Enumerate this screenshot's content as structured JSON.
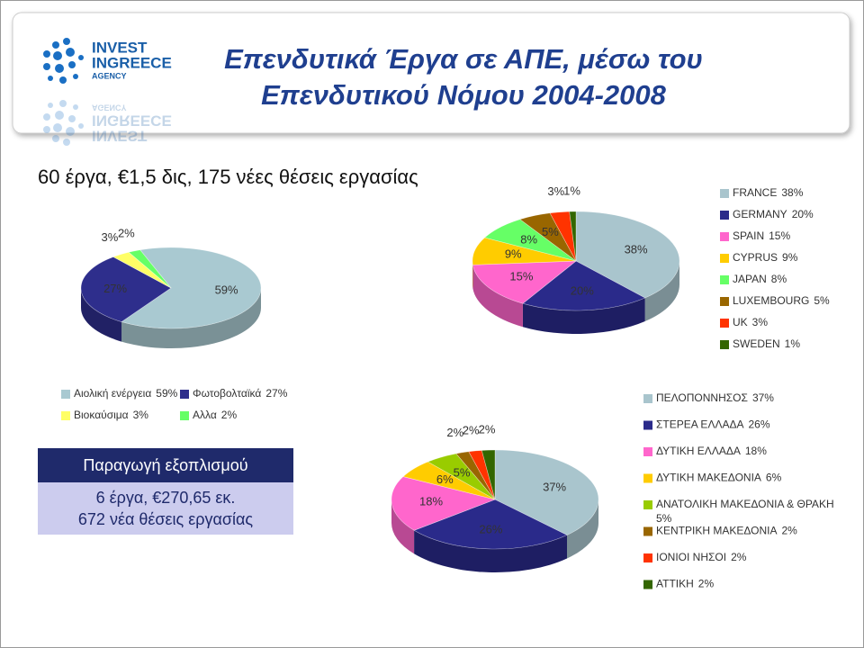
{
  "header": {
    "title_lines": [
      "Επενδυτικά Έργα σε ΑΠΕ, μέσω του",
      "Επενδυτικού Νόμου 2004-2008"
    ],
    "logo": [
      "INVEST",
      "INGREECE",
      "AGENCY"
    ]
  },
  "subtitle": "60 έργα, €1,5 δις, 175 νέες θέσεις εργασίας",
  "box": {
    "heading": "Παραγωγή εξοπλισμού",
    "lines": [
      "6 έργα, €270,65 εκ.",
      "672 νέα θέσεις εργασίας"
    ]
  },
  "chart_data": [
    {
      "type": "pie",
      "categories": [
        "Αιολική ενέργεια",
        "Φωτοβολταϊκά",
        "Βιοκαύσιμα",
        "Αλλα"
      ],
      "values": [
        59,
        27,
        3,
        2
      ],
      "value_labels": [
        "59%",
        "27%",
        "3%",
        "2%"
      ],
      "colors": [
        "#a9c9d1",
        "#2e2e8c",
        "#ffff66",
        "#66ff66"
      ]
    },
    {
      "type": "pie",
      "categories": [
        "FRANCE",
        "GERMANY",
        "SPAIN",
        "CYPRUS",
        "JAPAN",
        "LUXEMBOURG",
        "UK",
        "SWEDEN"
      ],
      "values": [
        38,
        20,
        15,
        9,
        8,
        5,
        3,
        1
      ],
      "value_labels": [
        "38%",
        "20%",
        "15%",
        "9%",
        "8%",
        "5%",
        "3%",
        "1%"
      ],
      "colors": [
        "#a9c5cd",
        "#2a2a8a",
        "#ff66cc",
        "#ffcc00",
        "#66ff66",
        "#996600",
        "#ff3300",
        "#336600"
      ]
    },
    {
      "type": "pie",
      "categories": [
        "ΠΕΛΟΠΟΝΝΗΣΟΣ",
        "ΣΤΕΡΕΑ ΕΛΛΑΔΑ",
        "ΔΥΤΙΚΗ ΕΛΛΑΔΑ",
        "ΔΥΤΙΚΗ ΜΑΚΕΔΟΝΙΑ",
        "ΑΝΑΤΟΛΙΚΗ ΜΑΚΕΔΟΝΙΑ & ΘΡΑΚΗ",
        "ΚΕΝΤΡΙΚΗ ΜΑΚΕΔΟΝΙΑ",
        "ΙΟΝΙΟΙ ΝΗΣΟΙ",
        "ΑΤΤΙΚΗ"
      ],
      "values": [
        37,
        26,
        18,
        6,
        5,
        2,
        2,
        2
      ],
      "value_labels": [
        "37%",
        "26%",
        "18%",
        "6%",
        "5%",
        "2%",
        "2%",
        "2%"
      ],
      "colors": [
        "#a9c5cd",
        "#2a2a8a",
        "#ff66cc",
        "#ffcc00",
        "#99cc00",
        "#996600",
        "#ff3300",
        "#336600"
      ]
    }
  ]
}
